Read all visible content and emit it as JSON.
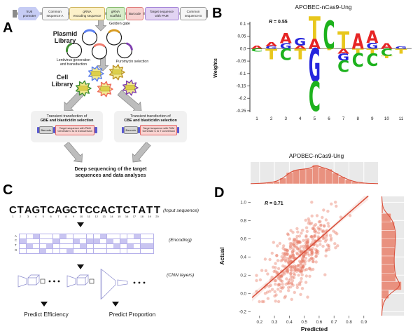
{
  "panel_a": {
    "label": "A",
    "construct_segments": [
      {
        "label": "hU6\npromoter",
        "fill": "#c6ccf4",
        "border": "#8d95e0",
        "shape": "arrow"
      },
      {
        "label": "Common\nsequence A",
        "fill": "#f6f6f6",
        "border": "#9a9a9a",
        "shape": "box"
      },
      {
        "label": "gRNA\nencoding sequence",
        "fill": "#fcf1c9",
        "border": "#ccb35c",
        "shape": "box"
      },
      {
        "label": "gRNA\nscaffold",
        "fill": "#d9edcb",
        "border": "#84b96a",
        "shape": "box"
      },
      {
        "label": "Barcode",
        "fill": "#f8d2d0",
        "border": "#dd7a78",
        "shape": "box"
      },
      {
        "label": "Target sequence\nwith PAM",
        "fill": "#e2d4f3",
        "border": "#a382d6",
        "shape": "box"
      },
      {
        "label": "Common\nsequence B",
        "fill": "#f6f6f6",
        "border": "#9a9a9a",
        "shape": "box"
      }
    ],
    "golden_gate_label": "Golden gate",
    "plasmid_library_label": "Plasmid\nLibrary",
    "plasmid_arc_colors": [
      "#5b7ff0",
      "#d89b22",
      "#3f8f33",
      "#ee7b6e",
      "#8040b0"
    ],
    "lentivirus_label": "Lentivirus generation\nand transduction",
    "puromycin_label": "Puromycin selection",
    "cell_library_label": "Cell\nLibrary",
    "cell_fill": "#f2e98e",
    "cell_outline_colors": [
      "#5b7ff0",
      "#bd9326",
      "#3f8f33",
      "#ee6a5a",
      "#8040b0"
    ],
    "transfection_boxes": [
      {
        "line1": "Transient transfection of",
        "line2": "GBE and blasticidin selection",
        "barcode": "Barcode",
        "target_line1": "Target sequence with PAM",
        "target_line2": "Generate C to G transversion"
      },
      {
        "line1": "Transient transfection of",
        "line2": "CBE and blasticidin selection",
        "barcode": "Barcode",
        "target_line1": "Target sequence with PAM",
        "target_line2": "Generate C to T conversion"
      }
    ],
    "deep_sequencing_label": "Deep sequencing of the target\nsequences and data analyses"
  },
  "panel_b": {
    "label": "B"
  },
  "panel_c": {
    "label": "C",
    "input_sequence": "CTAGTCAGCTCCACTCTATT",
    "input_caption": "(Input sequence)",
    "encoding_caption": "(Encoding)",
    "cnn_caption": "(CNN layers)",
    "encoding_rows": [
      "A",
      "C",
      "T",
      "G"
    ],
    "encoding_fill": "#c9c5f1",
    "encoding_grid_color": "#b5b0ea",
    "predict_efficiency_label": "Predict Efficiency",
    "predict_proportion_label": "Predict Proportion"
  },
  "panel_d": {
    "label": "D"
  },
  "chart_data": [
    {
      "type": "sequence_logo",
      "panel": "B",
      "title": "APOBEC-nCas9-Ung",
      "annotation": "R = 0.55",
      "ylabel": "Weights",
      "ylim": [
        -0.27,
        0.13
      ],
      "yticks": [
        "0.1",
        "0.05",
        "0.0",
        "-0.05",
        "-0.1",
        "-0.15",
        "-0.2",
        "-0.25"
      ],
      "ytick_values": [
        0.1,
        0.05,
        0.0,
        -0.05,
        -0.1,
        -0.15,
        -0.2,
        -0.25
      ],
      "xticks": [
        "1",
        "2",
        "3",
        "4",
        "5",
        "6",
        "7",
        "8",
        "9",
        "10",
        "11"
      ],
      "letter_colors": {
        "A": "#e62525",
        "C": "#1db21d",
        "G": "#2525dd",
        "T": "#e8c71d"
      },
      "stacks": [
        {
          "pos": 1,
          "up": [
            [
              "A",
              0.012
            ]
          ],
          "down": [
            [
              "C",
              0.012
            ]
          ]
        },
        {
          "pos": 2,
          "up": [
            [
              "G",
              0.01
            ],
            [
              "A",
              0.016
            ]
          ],
          "down": [
            [
              "T",
              0.042
            ]
          ]
        },
        {
          "pos": 3,
          "up": [
            [
              "G",
              0.022
            ],
            [
              "A",
              0.04
            ]
          ],
          "down": [
            [
              "C",
              0.046
            ]
          ]
        },
        {
          "pos": 4,
          "up": [
            [
              "A",
              0.013
            ],
            [
              "G",
              0.03
            ]
          ],
          "down": [
            [
              "T",
              0.042
            ]
          ]
        },
        {
          "pos": 5,
          "up": [
            [
              "A",
              0.04
            ],
            [
              "T",
              0.088
            ]
          ],
          "down": [
            [
              "G",
              0.132
            ],
            [
              "C",
              0.118
            ]
          ]
        },
        {
          "pos": 6,
          "up": [
            [
              "C",
              0.112
            ]
          ],
          "down": [
            [
              "T",
              0.006
            ]
          ]
        },
        {
          "pos": 7,
          "up": [
            [
              "T",
              0.068
            ]
          ],
          "down": [
            [
              "A",
              0.02
            ],
            [
              "G",
              0.028
            ],
            [
              "C",
              0.045
            ]
          ]
        },
        {
          "pos": 8,
          "up": [
            [
              "A",
              0.062
            ]
          ],
          "down": [
            [
              "T",
              0.018
            ],
            [
              "C",
              0.055
            ]
          ]
        },
        {
          "pos": 9,
          "up": [
            [
              "G",
              0.024
            ],
            [
              "A",
              0.048
            ]
          ],
          "down": [
            [
              "T",
              0.02
            ],
            [
              "C",
              0.05
            ]
          ]
        },
        {
          "pos": 10,
          "up": [
            [
              "A",
              0.022
            ]
          ],
          "down": [
            [
              "C",
              0.03
            ],
            [
              "T",
              0.008
            ]
          ]
        },
        {
          "pos": 11,
          "up": [
            [
              "G",
              0.009
            ]
          ],
          "down": [
            [
              "T",
              0.02
            ]
          ]
        }
      ]
    },
    {
      "type": "scatter_joint",
      "panel": "D",
      "title": "APOBEC-nCas9-Ung",
      "annotation": "R = 0.71",
      "xlabel": "Predicted",
      "ylabel": "Actual",
      "xlim": [
        0.14,
        0.995
      ],
      "ylim": [
        -0.244,
        1.064
      ],
      "xticks": [
        "0.2",
        "0.3",
        "0.4",
        "0.5",
        "0.6",
        "0.7",
        "0.8",
        "0.9"
      ],
      "xtick_values": [
        0.2,
        0.3,
        0.4,
        0.5,
        0.6,
        0.7,
        0.8,
        0.9
      ],
      "yticks": [
        "1.0",
        "0.8",
        "0.6",
        "0.4",
        "0.2",
        "0.0",
        "-0.2"
      ],
      "ytick_values": [
        1.0,
        0.8,
        0.6,
        0.4,
        0.2,
        0.0,
        -0.2
      ],
      "point_color": "#e87a64",
      "line_color": "#d9503c",
      "panel_bg": "#e9e9e9",
      "regression": {
        "slope": 1.43,
        "intercept": -0.26,
        "x_start": 0.15,
        "x_end": 0.93
      },
      "points_approx": {
        "n": 430,
        "seed": 20,
        "x_mean": 0.47,
        "x_sd": 0.11,
        "noise_sd": 0.155,
        "x_min": 0.18,
        "x_max": 0.92,
        "y_min": -0.09,
        "y_max": 1.0
      },
      "top_hist": [
        0.02,
        0.03,
        0.06,
        0.12,
        0.28,
        0.55,
        0.68,
        0.72,
        0.75,
        0.92,
        0.8,
        0.72,
        0.52,
        0.35,
        0.2,
        0.1,
        0.05,
        0.02
      ],
      "top_hist_range": [
        0.16,
        0.95
      ],
      "right_hist": [
        0.02,
        0.08,
        0.45,
        0.62,
        0.68,
        0.66,
        0.62,
        0.6,
        0.62,
        0.68,
        0.95,
        0.35,
        0.08,
        0.02
      ]
    }
  ]
}
